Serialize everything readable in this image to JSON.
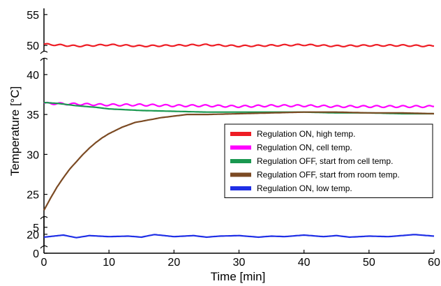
{
  "chart_data": {
    "type": "line",
    "title": "",
    "xlabel": "Time [min]",
    "ylabel": "Temperature [°C]",
    "xlim": [
      0,
      60
    ],
    "x_ticks": [
      0,
      10,
      20,
      30,
      40,
      50,
      60
    ],
    "y_axis_segments": [
      {
        "range": [
          0,
          7
        ],
        "ticks": [
          0,
          5
        ]
      },
      {
        "range": [
          18.5,
          42
        ],
        "ticks": [
          20,
          25,
          30,
          35,
          40
        ]
      },
      {
        "range": [
          49,
          56
        ],
        "ticks": [
          50,
          55
        ]
      }
    ],
    "grid": false,
    "legend_position": "right",
    "series": [
      {
        "name": "Regulation ON, high temp.",
        "color": "#ee1c24",
        "x": [
          0,
          5,
          10,
          15,
          20,
          25,
          30,
          35,
          40,
          45,
          50,
          55,
          60
        ],
        "y": [
          50.2,
          49.9,
          50.1,
          49.9,
          50.0,
          50.1,
          49.9,
          50.0,
          50.1,
          49.9,
          50.0,
          50.0,
          49.9
        ]
      },
      {
        "name": "Regulation ON, cell temp.",
        "color": "#ff00ff",
        "x": [
          0,
          5,
          10,
          15,
          20,
          25,
          30,
          35,
          40,
          45,
          50,
          55,
          60
        ],
        "y": [
          36.4,
          36.3,
          36.2,
          36.2,
          36.1,
          36.1,
          36.0,
          36.1,
          36.1,
          36.0,
          36.0,
          36.0,
          36.0
        ]
      },
      {
        "name": "Regulation OFF, start from cell temp.",
        "color": "#1a9850",
        "x": [
          0,
          2,
          5,
          8,
          10,
          15,
          20,
          25,
          30,
          35,
          40,
          45,
          50,
          55,
          60
        ],
        "y": [
          36.5,
          36.4,
          36.1,
          35.9,
          35.7,
          35.5,
          35.4,
          35.3,
          35.3,
          35.3,
          35.3,
          35.2,
          35.2,
          35.1,
          35.1
        ]
      },
      {
        "name": "Regulation OFF, start from room temp.",
        "color": "#7b4a23",
        "x": [
          0,
          1,
          2,
          3,
          4,
          5,
          6,
          7,
          8,
          9,
          10,
          12,
          14,
          16,
          18,
          20,
          22,
          25,
          30,
          35,
          40,
          45,
          50,
          55,
          60
        ],
        "y": [
          23.0,
          24.5,
          25.9,
          27.1,
          28.2,
          29.1,
          30.0,
          30.8,
          31.5,
          32.1,
          32.6,
          33.4,
          34.0,
          34.3,
          34.6,
          34.8,
          35.0,
          35.0,
          35.1,
          35.2,
          35.3,
          35.3,
          35.2,
          35.2,
          35.1
        ]
      },
      {
        "name": "Regulation ON, low temp.",
        "color": "#1f2fe6",
        "x": [
          0,
          3,
          5,
          7,
          10,
          13,
          15,
          17,
          20,
          23,
          25,
          27,
          30,
          33,
          35,
          37,
          40,
          43,
          45,
          47,
          50,
          53,
          55,
          57,
          60
        ],
        "y": [
          3.1,
          3.5,
          3.0,
          3.4,
          3.2,
          3.3,
          3.1,
          3.6,
          3.2,
          3.4,
          3.1,
          3.3,
          3.4,
          3.1,
          3.3,
          3.2,
          3.5,
          3.2,
          3.4,
          3.1,
          3.3,
          3.2,
          3.4,
          3.6,
          3.3
        ]
      }
    ]
  }
}
